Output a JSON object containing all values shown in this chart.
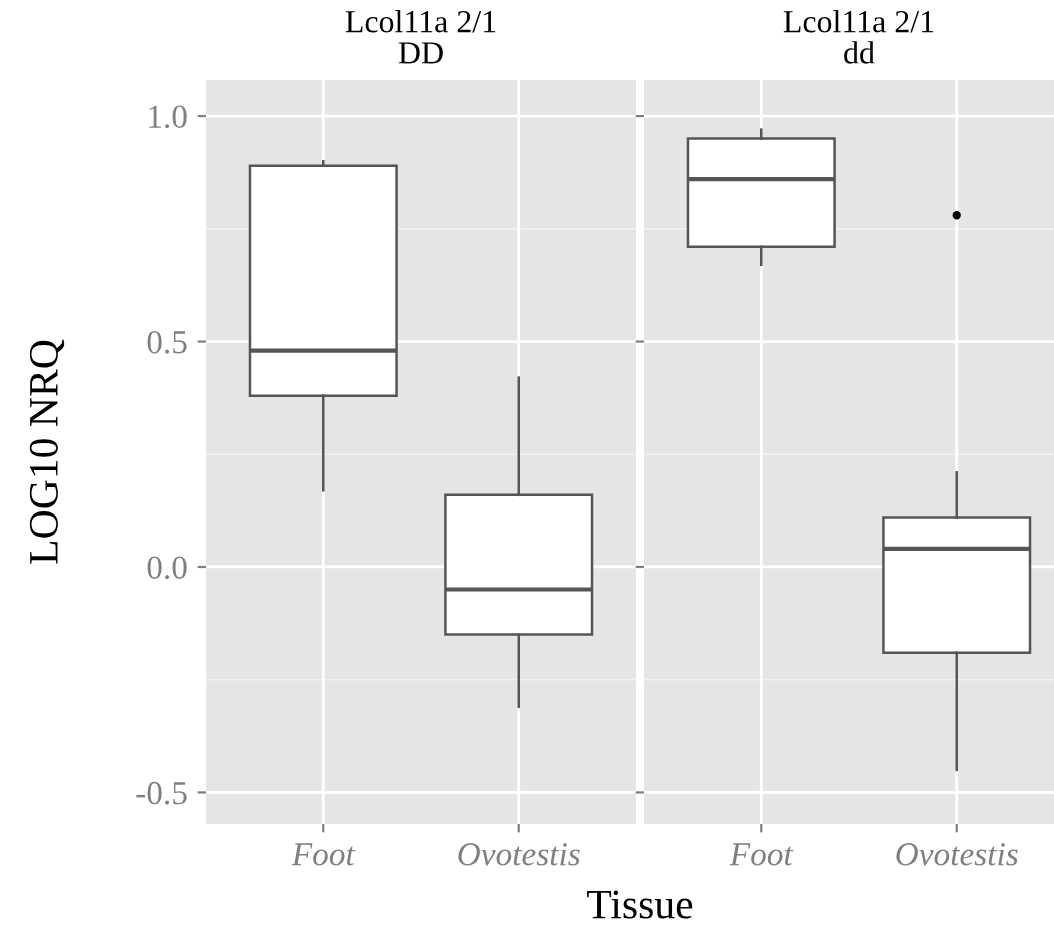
{
  "chart_data": [
    {
      "type": "box",
      "title": "Lcol11a 2/1",
      "subtitle": "DD",
      "xlabel": "Tissue",
      "ylabel": "LOG10 NRQ",
      "categories": [
        "Foot",
        "Ovotestis"
      ],
      "boxes": [
        {
          "low": 0.17,
          "q1": 0.38,
          "median": 0.48,
          "q3": 0.89,
          "high": 0.9
        },
        {
          "low": -0.31,
          "q1": -0.15,
          "median": -0.05,
          "q3": 0.16,
          "high": 0.42
        }
      ],
      "ylim": [
        -0.57,
        1.08
      ],
      "yticks": [
        {
          "value": -0.5,
          "label": "-0.5"
        },
        {
          "value": 0.0,
          "label": "0.0"
        },
        0.5,
        {
          "value": 1.0,
          "label": "1.0"
        }
      ],
      "grid": true
    },
    {
      "type": "box",
      "title": "Lcol11a 2/1",
      "subtitle": "dd",
      "categories": [
        "Foot",
        "Ovotestis"
      ],
      "boxes": [
        {
          "low": 0.67,
          "q1": 0.71,
          "median": 0.86,
          "q3": 0.95,
          "high": 0.97
        },
        {
          "low": -0.45,
          "q1": -0.19,
          "median": 0.04,
          "q3": 0.11,
          "high": 0.21,
          "outliers": [
            0.78
          ]
        }
      ],
      "ylim": [
        -0.57,
        1.08
      ],
      "yticks": [
        -0.5,
        0,
        0.5,
        1
      ],
      "grid": true,
      "tick_labels": "x"
    }
  ]
}
